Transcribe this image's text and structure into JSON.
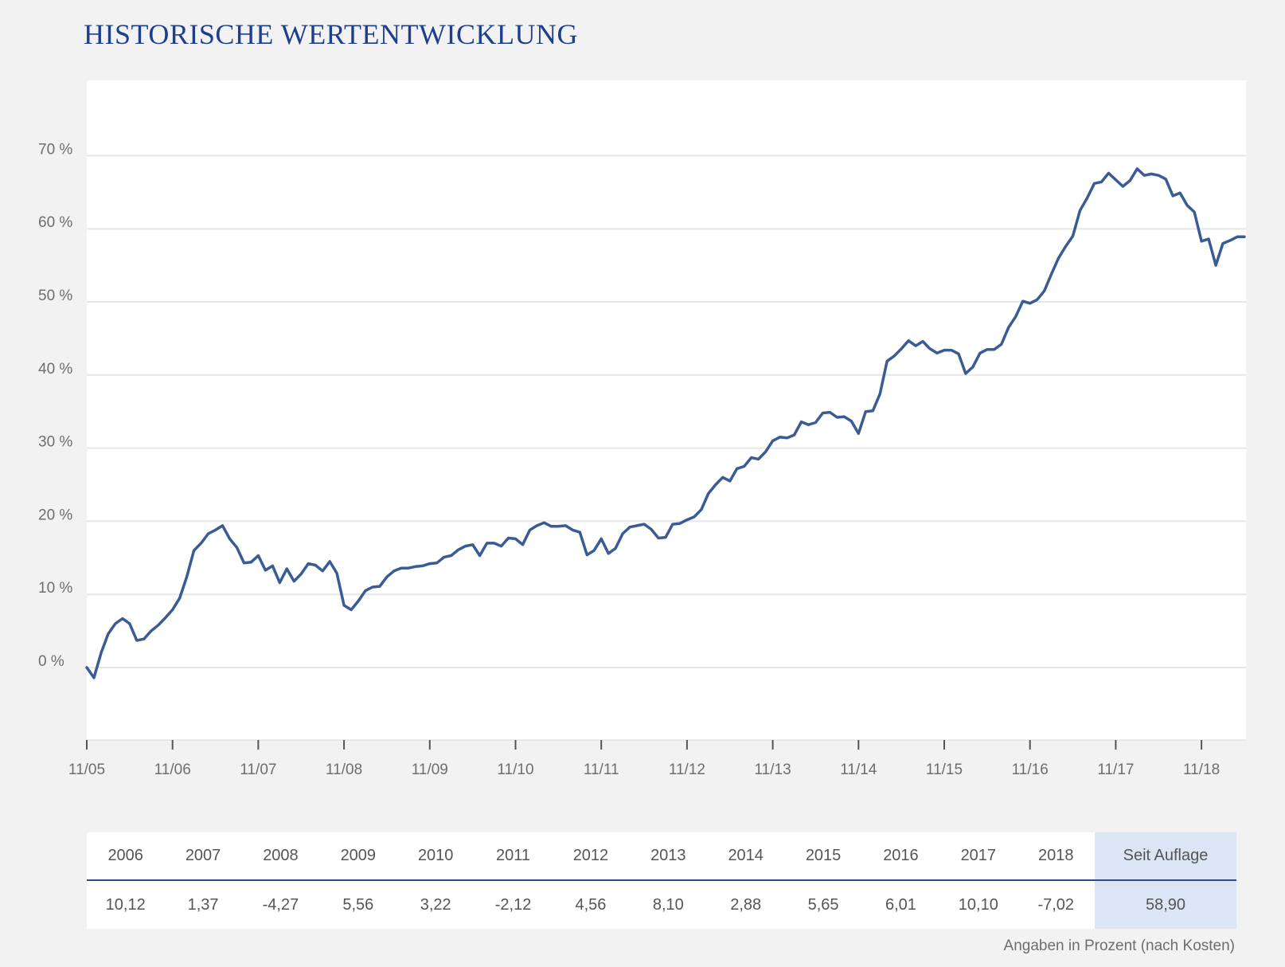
{
  "title": "HISTORISCHE WERTENTWICKLUNG",
  "colors": {
    "title": "#1f3f8c",
    "line": "#3b5b95",
    "grid": "#e6e6e6",
    "highlight": "#dbe5f5"
  },
  "chart_data": {
    "type": "line",
    "title": "HISTORISCHE WERTENTWICKLUNG",
    "xlabel": "",
    "ylabel": "",
    "ylim": [
      -10,
      80
    ],
    "yticks": [
      0,
      10,
      20,
      30,
      40,
      50,
      60,
      70
    ],
    "ytick_labels": [
      "0 %",
      "10 %",
      "20 %",
      "30 %",
      "40 %",
      "50 %",
      "60 %",
      "70 %"
    ],
    "xlim": [
      "2005-11",
      "2019-07"
    ],
    "xticks": [
      "2005-11",
      "2006-11",
      "2007-11",
      "2008-11",
      "2009-11",
      "2010-11",
      "2011-11",
      "2012-11",
      "2013-11",
      "2014-11",
      "2015-11",
      "2016-11",
      "2017-11",
      "2018-11"
    ],
    "xtick_labels": [
      "11/05",
      "11/06",
      "11/07",
      "11/08",
      "11/09",
      "11/10",
      "11/11",
      "11/12",
      "11/13",
      "11/14",
      "11/15",
      "11/16",
      "11/17",
      "11/18"
    ],
    "grid": true,
    "legend": "none",
    "series": [
      {
        "values": [
          [
            "2005-11",
            0.0
          ],
          [
            "2005-12",
            -1.4
          ],
          [
            "2006-01",
            2.0
          ],
          [
            "2006-02",
            4.6
          ],
          [
            "2006-03",
            6.0
          ],
          [
            "2006-04",
            6.7
          ],
          [
            "2006-05",
            6.0
          ],
          [
            "2006-06",
            3.7
          ],
          [
            "2006-07",
            3.9
          ],
          [
            "2006-08",
            5.0
          ],
          [
            "2006-09",
            5.8
          ],
          [
            "2006-10",
            6.8
          ],
          [
            "2006-11",
            7.9
          ],
          [
            "2006-12",
            9.5
          ],
          [
            "2007-01",
            12.4
          ],
          [
            "2007-02",
            16.0
          ],
          [
            "2007-03",
            17.0
          ],
          [
            "2007-04",
            18.3
          ],
          [
            "2007-05",
            18.8
          ],
          [
            "2007-06",
            19.4
          ],
          [
            "2007-07",
            17.6
          ],
          [
            "2007-08",
            16.4
          ],
          [
            "2007-09",
            14.3
          ],
          [
            "2007-10",
            14.4
          ],
          [
            "2007-11",
            15.3
          ],
          [
            "2007-12",
            13.3
          ],
          [
            "2008-01",
            13.9
          ],
          [
            "2008-02",
            11.6
          ],
          [
            "2008-03",
            13.5
          ],
          [
            "2008-04",
            11.8
          ],
          [
            "2008-05",
            12.8
          ],
          [
            "2008-06",
            14.2
          ],
          [
            "2008-07",
            14.0
          ],
          [
            "2008-08",
            13.2
          ],
          [
            "2008-09",
            14.5
          ],
          [
            "2008-10",
            12.9
          ],
          [
            "2008-11",
            8.5
          ],
          [
            "2008-12",
            7.9
          ],
          [
            "2009-01",
            9.1
          ],
          [
            "2009-02",
            10.5
          ],
          [
            "2009-03",
            11.0
          ],
          [
            "2009-04",
            11.1
          ],
          [
            "2009-05",
            12.4
          ],
          [
            "2009-06",
            13.2
          ],
          [
            "2009-07",
            13.6
          ],
          [
            "2009-08",
            13.6
          ],
          [
            "2009-09",
            13.8
          ],
          [
            "2009-10",
            13.9
          ],
          [
            "2009-11",
            14.2
          ],
          [
            "2009-12",
            14.3
          ],
          [
            "2010-01",
            15.1
          ],
          [
            "2010-02",
            15.3
          ],
          [
            "2010-03",
            16.1
          ],
          [
            "2010-04",
            16.6
          ],
          [
            "2010-05",
            16.8
          ],
          [
            "2010-06",
            15.3
          ],
          [
            "2010-07",
            17.0
          ],
          [
            "2010-08",
            17.0
          ],
          [
            "2010-09",
            16.6
          ],
          [
            "2010-10",
            17.7
          ],
          [
            "2010-11",
            17.6
          ],
          [
            "2010-12",
            16.8
          ],
          [
            "2011-01",
            18.8
          ],
          [
            "2011-02",
            19.4
          ],
          [
            "2011-03",
            19.8
          ],
          [
            "2011-04",
            19.3
          ],
          [
            "2011-05",
            19.3
          ],
          [
            "2011-06",
            19.4
          ],
          [
            "2011-07",
            18.8
          ],
          [
            "2011-08",
            18.5
          ],
          [
            "2011-09",
            15.4
          ],
          [
            "2011-10",
            16.0
          ],
          [
            "2011-11",
            17.6
          ],
          [
            "2011-12",
            15.6
          ],
          [
            "2012-01",
            16.3
          ],
          [
            "2012-02",
            18.3
          ],
          [
            "2012-03",
            19.2
          ],
          [
            "2012-04",
            19.4
          ],
          [
            "2012-05",
            19.6
          ],
          [
            "2012-06",
            18.9
          ],
          [
            "2012-07",
            17.7
          ],
          [
            "2012-08",
            17.8
          ],
          [
            "2012-09",
            19.6
          ],
          [
            "2012-10",
            19.7
          ],
          [
            "2012-11",
            20.2
          ],
          [
            "2012-12",
            20.6
          ],
          [
            "2013-01",
            21.6
          ],
          [
            "2013-02",
            23.8
          ],
          [
            "2013-03",
            25.0
          ],
          [
            "2013-04",
            26.0
          ],
          [
            "2013-05",
            25.5
          ],
          [
            "2013-06",
            27.2
          ],
          [
            "2013-07",
            27.5
          ],
          [
            "2013-08",
            28.7
          ],
          [
            "2013-09",
            28.5
          ],
          [
            "2013-10",
            29.5
          ],
          [
            "2013-11",
            31.0
          ],
          [
            "2013-12",
            31.5
          ],
          [
            "2014-01",
            31.4
          ],
          [
            "2014-02",
            31.8
          ],
          [
            "2014-03",
            33.6
          ],
          [
            "2014-04",
            33.2
          ],
          [
            "2014-05",
            33.5
          ],
          [
            "2014-06",
            34.8
          ],
          [
            "2014-07",
            34.9
          ],
          [
            "2014-08",
            34.2
          ],
          [
            "2014-09",
            34.3
          ],
          [
            "2014-10",
            33.7
          ],
          [
            "2014-11",
            32.0
          ],
          [
            "2014-12",
            35.0
          ],
          [
            "2015-01",
            35.1
          ],
          [
            "2015-02",
            37.4
          ],
          [
            "2015-03",
            41.9
          ],
          [
            "2015-04",
            42.6
          ],
          [
            "2015-05",
            43.6
          ],
          [
            "2015-06",
            44.7
          ],
          [
            "2015-07",
            44.0
          ],
          [
            "2015-08",
            44.6
          ],
          [
            "2015-09",
            43.6
          ],
          [
            "2015-10",
            43.0
          ],
          [
            "2015-11",
            43.4
          ],
          [
            "2015-12",
            43.4
          ],
          [
            "2016-01",
            42.9
          ],
          [
            "2016-02",
            40.2
          ],
          [
            "2016-03",
            41.1
          ],
          [
            "2016-04",
            43.0
          ],
          [
            "2016-05",
            43.5
          ],
          [
            "2016-06",
            43.5
          ],
          [
            "2016-07",
            44.2
          ],
          [
            "2016-08",
            46.5
          ],
          [
            "2016-09",
            48.0
          ],
          [
            "2016-10",
            50.1
          ],
          [
            "2016-11",
            49.8
          ],
          [
            "2016-12",
            50.3
          ],
          [
            "2017-01",
            51.5
          ],
          [
            "2017-02",
            53.8
          ],
          [
            "2017-03",
            56.0
          ],
          [
            "2017-04",
            57.6
          ],
          [
            "2017-05",
            59.0
          ],
          [
            "2017-06",
            62.5
          ],
          [
            "2017-07",
            64.2
          ],
          [
            "2017-08",
            66.2
          ],
          [
            "2017-09",
            66.4
          ],
          [
            "2017-10",
            67.6
          ],
          [
            "2017-11",
            66.7
          ],
          [
            "2017-12",
            65.8
          ],
          [
            "2018-01",
            66.6
          ],
          [
            "2018-02",
            68.2
          ],
          [
            "2018-03",
            67.3
          ],
          [
            "2018-04",
            67.5
          ],
          [
            "2018-05",
            67.3
          ],
          [
            "2018-06",
            66.8
          ],
          [
            "2018-07",
            64.5
          ],
          [
            "2018-08",
            64.9
          ],
          [
            "2018-09",
            63.2
          ],
          [
            "2018-10",
            62.3
          ],
          [
            "2018-11",
            58.3
          ],
          [
            "2018-12",
            58.6
          ],
          [
            "2019-01",
            55.0
          ],
          [
            "2019-02",
            58.0
          ],
          [
            "2019-03",
            58.4
          ],
          [
            "2019-04",
            58.9
          ],
          [
            "2019-05",
            58.9
          ]
        ]
      }
    ]
  },
  "table": {
    "headers": [
      "2006",
      "2007",
      "2008",
      "2009",
      "2010",
      "2011",
      "2012",
      "2013",
      "2014",
      "2015",
      "2016",
      "2017",
      "2018",
      "Seit Auflage"
    ],
    "values": [
      "10,12",
      "1,37",
      "-4,27",
      "5,56",
      "3,22",
      "-2,12",
      "4,56",
      "8,10",
      "2,88",
      "5,65",
      "6,01",
      "10,10",
      "-7,02",
      "58,90"
    ]
  },
  "footnote": "Angaben in Prozent (nach Kosten)"
}
